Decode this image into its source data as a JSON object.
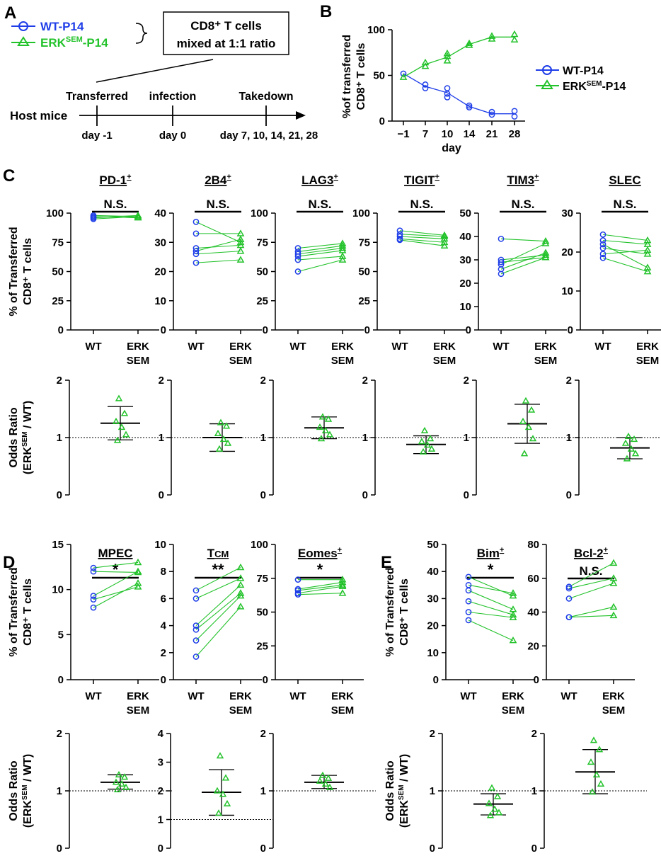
{
  "colors": {
    "wt": "#1f3ee8",
    "erk": "#22c22a",
    "axis": "#000000"
  },
  "panelA": {
    "letter": "A",
    "legend": [
      {
        "label": "WT-P14",
        "marker": "circle",
        "color": "#1f3ee8"
      },
      {
        "label_main": "ERK",
        "label_sup": "SEM",
        "label_tail": "-P14",
        "marker": "triangle",
        "color": "#22c22a"
      }
    ],
    "box_lines": [
      "CD8⁺ T cells",
      "mixed at 1:1 ratio"
    ],
    "host_label": "Host mice",
    "events": [
      {
        "top": "Transferred",
        "bottom": "day -1"
      },
      {
        "top": "infection",
        "bottom": "day 0"
      },
      {
        "top": "Takedown",
        "bottom": "day 7, 10, 14, 21, 28"
      }
    ]
  },
  "panelB": {
    "letter": "B",
    "legend": [
      {
        "label": "WT-P14",
        "marker": "circle"
      },
      {
        "label_main": "ERK",
        "label_sup": "SEM",
        "label_tail": "-P14",
        "marker": "triangle"
      }
    ]
  },
  "panelC": {
    "letter": "C"
  },
  "panelD": {
    "letter": "D"
  },
  "panelE": {
    "letter": "E"
  },
  "chart_data": [
    {
      "id": "B",
      "type": "line",
      "title": "",
      "ylabel": [
        "%of transferred",
        "CD8⁺ T cells"
      ],
      "xlabel": "day",
      "categories": [
        "−1",
        "7",
        "10",
        "14",
        "21",
        "28"
      ],
      "ylim": [
        0,
        100
      ],
      "yticks": [
        0,
        50,
        100
      ],
      "series": [
        {
          "name": "WT-P14",
          "marker": "circle",
          "line": [
            52,
            38,
            31,
            16,
            8,
            8
          ],
          "points": [
            [
              0,
              52
            ],
            [
              1,
              40
            ],
            [
              1,
              36
            ],
            [
              2,
              36
            ],
            [
              2,
              30
            ],
            [
              2,
              26
            ],
            [
              3,
              17
            ],
            [
              3,
              15
            ],
            [
              4,
              10
            ],
            [
              4,
              7
            ],
            [
              5,
              11
            ],
            [
              5,
              5
            ]
          ]
        },
        {
          "name": "ERK-SEM-P14",
          "marker": "triangle",
          "line": [
            48,
            62,
            70,
            84,
            92,
            92
          ],
          "points": [
            [
              0,
              48
            ],
            [
              1,
              64
            ],
            [
              1,
              60
            ],
            [
              2,
              74
            ],
            [
              2,
              71
            ],
            [
              2,
              66
            ],
            [
              3,
              85
            ],
            [
              3,
              83
            ],
            [
              4,
              93
            ],
            [
              4,
              90
            ],
            [
              5,
              95
            ],
            [
              5,
              89
            ]
          ]
        }
      ]
    },
    {
      "id": "C-PD1",
      "type": "paired",
      "title": "PD-1",
      "title_sup": "+",
      "sig": "N.S.",
      "ylabel": [
        "% of Transferred",
        "CD8⁺ T cells"
      ],
      "ylim": [
        0,
        100
      ],
      "yticks": [
        0,
        25,
        50,
        75,
        100
      ],
      "categories": [
        "WT",
        "ERK|SEM"
      ],
      "wt": [
        98,
        97,
        96,
        95
      ],
      "erk": [
        97,
        96,
        98,
        97
      ]
    },
    {
      "id": "C-2B4",
      "type": "paired",
      "title": "2B4",
      "title_sup": "+",
      "sig": "N.S.",
      "ylim": [
        0,
        40
      ],
      "yticks": [
        0,
        10,
        20,
        30,
        40
      ],
      "categories": [
        "WT",
        "ERK|SEM"
      ],
      "wt": [
        37,
        33,
        28,
        27,
        26,
        23
      ],
      "erk": [
        30,
        33,
        29,
        31,
        27,
        24
      ]
    },
    {
      "id": "C-LAG3",
      "type": "paired",
      "title": "LAG3",
      "title_sup": "+",
      "sig": "N.S.",
      "ylim": [
        0,
        100
      ],
      "yticks": [
        0,
        25,
        50,
        75,
        100
      ],
      "categories": [
        "WT",
        "ERK|SEM"
      ],
      "wt": [
        70,
        67,
        65,
        63,
        60,
        50
      ],
      "erk": [
        74,
        72,
        70,
        68,
        63,
        60
      ]
    },
    {
      "id": "C-TIGIT",
      "type": "paired",
      "title": "TIGIT",
      "title_sup": "+",
      "sig": "N.S.",
      "ylim": [
        0,
        100
      ],
      "yticks": [
        0,
        25,
        50,
        75,
        100
      ],
      "categories": [
        "WT",
        "ERK|SEM"
      ],
      "wt": [
        85,
        82,
        80,
        78,
        77
      ],
      "erk": [
        81,
        80,
        78,
        75,
        72
      ]
    },
    {
      "id": "C-TIM3",
      "type": "paired",
      "title": "TIM3",
      "title_sup": "+",
      "sig": "N.S.",
      "ylim": [
        0,
        50
      ],
      "yticks": [
        0,
        10,
        20,
        30,
        40,
        50
      ],
      "categories": [
        "WT",
        "ERK|SEM"
      ],
      "wt": [
        39,
        30,
        29,
        28,
        26,
        24
      ],
      "erk": [
        38,
        32,
        31,
        37,
        33,
        31
      ]
    },
    {
      "id": "C-SLEC",
      "type": "paired",
      "title": "SLEC",
      "title_sup": "",
      "sig": "N.S.",
      "ylim": [
        0,
        30
      ],
      "yticks": [
        0,
        10,
        20,
        30
      ],
      "categories": [
        "WT",
        "ERK|SEM"
      ],
      "wt": [
        24.5,
        23,
        22,
        21,
        19.5,
        18.5
      ],
      "erk": [
        23,
        22,
        16,
        19.5,
        20.5,
        15
      ]
    },
    {
      "id": "C-OR-PD1",
      "type": "odds",
      "ylabel": [
        "Odds Ratio",
        "(ERK|SEM| / WT)"
      ],
      "ylim": [
        0,
        2
      ],
      "yticks": [
        0,
        1,
        2
      ],
      "points": [
        1.68,
        1.42,
        1.28,
        1.18,
        1.05,
        0.95
      ],
      "mean": 1.25,
      "sd": [
        0.96,
        1.54
      ]
    },
    {
      "id": "C-OR-2B4",
      "type": "odds",
      "ylim": [
        0,
        2
      ],
      "yticks": [
        0,
        1,
        2
      ],
      "points": [
        1.26,
        1.2,
        1.07,
        0.97,
        0.9,
        0.8
      ],
      "mean": 1.0,
      "sd": [
        0.76,
        1.24
      ]
    },
    {
      "id": "C-OR-LAG3",
      "type": "odds",
      "ylim": [
        0,
        2
      ],
      "yticks": [
        0,
        1,
        2
      ],
      "points": [
        1.36,
        1.32,
        1.18,
        1.12,
        1.05,
        0.98
      ],
      "mean": 1.17,
      "sd": [
        0.98,
        1.36
      ]
    },
    {
      "id": "C-OR-TIGIT",
      "type": "odds",
      "ylim": [
        0,
        2
      ],
      "yticks": [
        0,
        1,
        2
      ],
      "points": [
        1.12,
        0.98,
        0.93,
        0.87,
        0.8,
        0.75
      ],
      "mean": 0.88,
      "sd": [
        0.72,
        1.03
      ]
    },
    {
      "id": "C-OR-TIM3",
      "type": "odds",
      "ylim": [
        0,
        2
      ],
      "yticks": [
        0,
        1,
        2
      ],
      "points": [
        1.64,
        1.48,
        1.28,
        1.18,
        0.98,
        0.72
      ],
      "mean": 1.24,
      "sd": [
        0.9,
        1.58
      ]
    },
    {
      "id": "C-OR-SLEC",
      "type": "odds",
      "ylim": [
        0,
        2
      ],
      "yticks": [
        0,
        1,
        2
      ],
      "points": [
        1.02,
        0.97,
        0.9,
        0.8,
        0.72,
        0.63
      ],
      "mean": 0.82,
      "sd": [
        0.63,
        1.0
      ]
    },
    {
      "id": "D-MPEC",
      "type": "paired",
      "title": "MPEC",
      "title_sup": "",
      "sig": "*",
      "ylabel": [
        "% of Transferred",
        "CD8⁺ T cells"
      ],
      "ylim": [
        0,
        15
      ],
      "yticks": [
        0,
        5,
        10,
        15
      ],
      "categories": [
        "WT",
        "ERK|SEM"
      ],
      "wt": [
        12.4,
        12.0,
        9.3,
        8.9,
        8.0
      ],
      "erk": [
        13.0,
        11.9,
        12.0,
        10.3,
        10.7
      ]
    },
    {
      "id": "D-TCM",
      "type": "paired",
      "title": "TCM",
      "title_smallcaps": true,
      "title_sup": "",
      "sig": "**",
      "ylim": [
        0,
        10
      ],
      "yticks": [
        0,
        2,
        4,
        6,
        8,
        10
      ],
      "categories": [
        "WT",
        "ERK|SEM"
      ],
      "wt": [
        6.6,
        6.0,
        4.0,
        3.7,
        2.9,
        1.7
      ],
      "erk": [
        8.3,
        7.5,
        7.0,
        6.4,
        6.2,
        5.4
      ]
    },
    {
      "id": "D-Eomes",
      "type": "paired",
      "title": "Eomes",
      "title_sup": "+",
      "sig": "*",
      "ylim": [
        0,
        100
      ],
      "yticks": [
        0,
        25,
        50,
        75,
        100
      ],
      "categories": [
        "WT",
        "ERK|SEM"
      ],
      "wt": [
        74,
        67,
        66,
        64,
        63
      ],
      "erk": [
        74,
        72,
        70,
        69,
        64
      ]
    },
    {
      "id": "D-OR-MPEC",
      "type": "odds",
      "ylabel": [
        "Odds Ratio",
        "(ERK|SEM| / WT)"
      ],
      "ylim": [
        0,
        2
      ],
      "yticks": [
        0,
        1,
        2
      ],
      "points": [
        1.28,
        1.24,
        1.15,
        1.12,
        1.06,
        1.02
      ],
      "mean": 1.15,
      "sd": [
        1.03,
        1.28
      ]
    },
    {
      "id": "D-OR-TCM",
      "type": "odds",
      "ylim": [
        0,
        4
      ],
      "yticks": [
        0,
        1,
        2,
        3,
        4
      ],
      "ref": 1,
      "points": [
        3.22,
        2.45,
        2.0,
        1.88,
        1.55,
        1.22
      ],
      "mean": 1.95,
      "sd": [
        1.15,
        2.74
      ]
    },
    {
      "id": "D-OR-Eomes",
      "type": "odds",
      "ylim": [
        0,
        2
      ],
      "yticks": [
        0,
        1,
        2
      ],
      "points": [
        1.27,
        1.22,
        1.17,
        1.12,
        1.06
      ],
      "mean": 1.15,
      "sd": [
        1.04,
        1.27
      ]
    },
    {
      "id": "E-Bim",
      "type": "paired",
      "title": "Bim",
      "title_sup": "+",
      "sig": "*",
      "ylabel": [
        "% of Transferred",
        "CD8⁺ T cells"
      ],
      "ylim": [
        0,
        50
      ],
      "yticks": [
        0,
        10,
        20,
        30,
        40,
        50
      ],
      "categories": [
        "WT",
        "ERK|SEM"
      ],
      "wt": [
        38,
        35,
        33,
        29,
        25,
        22
      ],
      "erk": [
        31,
        32,
        26,
        24,
        23,
        14.5
      ]
    },
    {
      "id": "E-Bcl2",
      "type": "paired",
      "title": "Bcl-2",
      "title_sup": "+",
      "sig": "N.S.",
      "ylim": [
        0,
        80
      ],
      "yticks": [
        0,
        20,
        40,
        60,
        80
      ],
      "categories": [
        "WT",
        "ERK|SEM"
      ],
      "wt": [
        55,
        54,
        48,
        37,
        37
      ],
      "erk": [
        69,
        60,
        57,
        43,
        38
      ]
    },
    {
      "id": "E-OR-Bim",
      "type": "odds",
      "ylabel": [
        "Odds Ratio",
        "(ERK|SEM| / WT)"
      ],
      "ylim": [
        0,
        2
      ],
      "yticks": [
        0,
        1,
        2
      ],
      "points": [
        1.05,
        0.9,
        0.78,
        0.68,
        0.62,
        0.57
      ],
      "mean": 0.77,
      "sd": [
        0.58,
        0.95
      ]
    },
    {
      "id": "E-OR-Bcl2",
      "type": "odds",
      "ylim": [
        0,
        2
      ],
      "yticks": [
        0,
        1,
        2
      ],
      "points": [
        1.88,
        1.72,
        1.5,
        1.28,
        1.12,
        0.98
      ],
      "mean": 1.33,
      "sd": [
        0.95,
        1.72
      ]
    }
  ]
}
